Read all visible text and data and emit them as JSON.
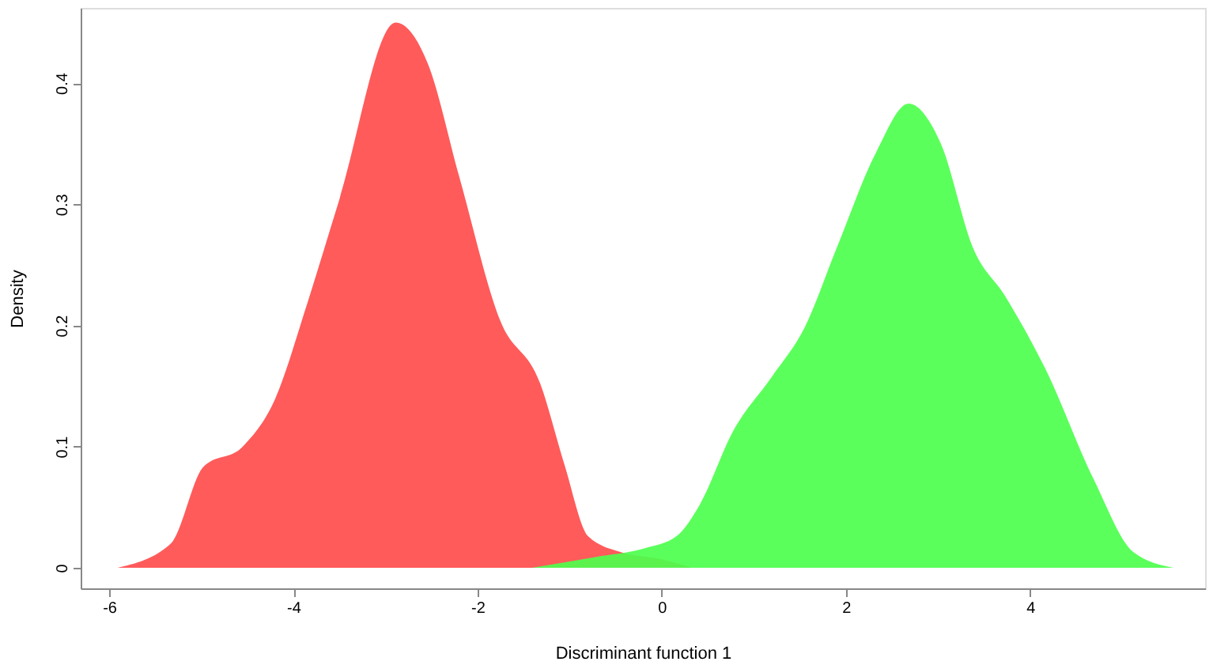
{
  "chart_data": {
    "type": "area",
    "xlabel": "Discriminant function 1",
    "ylabel": "Density",
    "xlim": [
      -6.31,
      5.9
    ],
    "ylim": [
      -0.017,
      0.462
    ],
    "xticks": [
      -6,
      -4,
      -2,
      0,
      2,
      4
    ],
    "yticks": [
      0,
      0.1,
      0.2,
      0.3,
      0.4
    ],
    "grid": false,
    "series": [
      {
        "color": "#ff4d4d",
        "x": [
          -5.91,
          -5.33,
          -4.98,
          -4.55,
          -4.2,
          -3.85,
          -3.5,
          -2.89,
          -2.54,
          -2.2,
          -1.76,
          -1.32,
          -1.06,
          -0.8,
          -0.45,
          0,
          0.33
        ],
        "values": [
          0,
          0.02,
          0.083,
          0.1,
          0.139,
          0.218,
          0.304,
          0.45,
          0.416,
          0.323,
          0.205,
          0.152,
          0.086,
          0.026,
          0.013,
          0.007,
          0
        ]
      },
      {
        "color": "#4dff4d",
        "x": [
          -1.41,
          -0.71,
          -0.19,
          0.16,
          0.42,
          0.77,
          1.2,
          1.55,
          1.9,
          2.33,
          2.68,
          3.03,
          3.38,
          3.73,
          4.16,
          4.69,
          5.12,
          5.56
        ],
        "values": [
          0,
          0.009,
          0.016,
          0.026,
          0.053,
          0.112,
          0.158,
          0.198,
          0.264,
          0.343,
          0.383,
          0.35,
          0.264,
          0.224,
          0.165,
          0.073,
          0.013,
          0
        ]
      }
    ]
  }
}
